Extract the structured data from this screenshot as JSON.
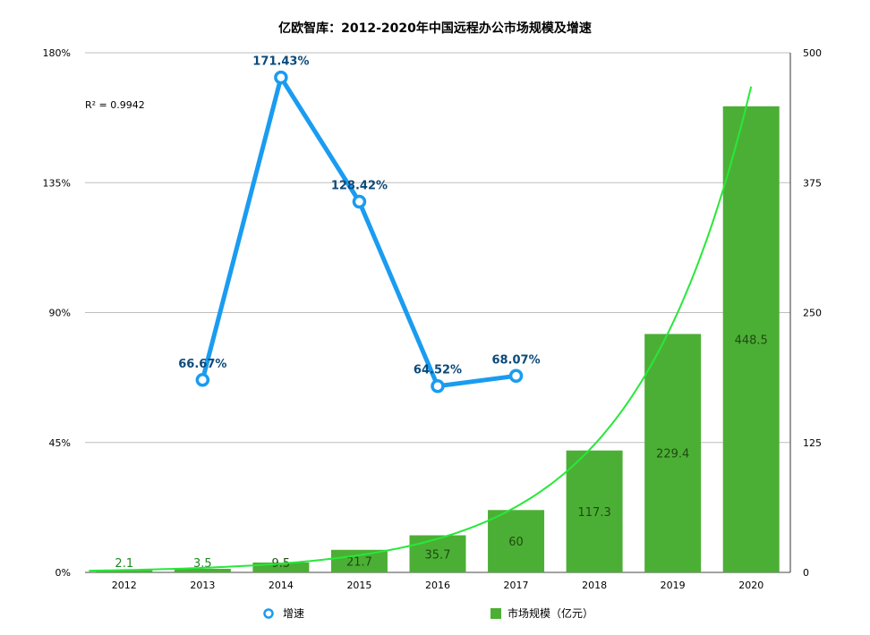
{
  "chart_data": {
    "type": "bar",
    "title": "亿欧智库：2012-2020年中国远程办公市场规模及增速",
    "categories": [
      "2012",
      "2013",
      "2014",
      "2015",
      "2016",
      "2017",
      "2018",
      "2019",
      "2020"
    ],
    "series": [
      {
        "name": "市场规模（亿元）",
        "type": "bar",
        "axis": "right",
        "values": [
          2.1,
          3.5,
          9.5,
          21.7,
          35.7,
          60,
          117.3,
          229.4,
          448.5
        ],
        "labels": [
          "2.1",
          "3.5",
          "9.5",
          "21.7",
          "35.7",
          "60",
          "117.3",
          "229.4",
          "448.5"
        ],
        "color": "#4caf35"
      },
      {
        "name": "增速",
        "type": "line",
        "axis": "left",
        "values": [
          null,
          66.67,
          171.43,
          128.42,
          64.52,
          68.07,
          null,
          null,
          null
        ],
        "labels": [
          "",
          "66.67%",
          "171.43%",
          "128.42%",
          "64.52%",
          "68.07%",
          "",
          "",
          ""
        ],
        "color": "#1a9cf0"
      }
    ],
    "trendline": {
      "of_series": "市场规模（亿元）",
      "kind": "exponential",
      "r_squared_label": "R² = 0.9942",
      "color": "#27e83a"
    },
    "left_axis": {
      "min": 0,
      "max": 180,
      "ticks": [
        "0%",
        "45%",
        "90%",
        "135%",
        "180%"
      ]
    },
    "right_axis": {
      "min": 0,
      "max": 500,
      "ticks": [
        "0",
        "125",
        "250",
        "375",
        "500"
      ]
    },
    "grid": true,
    "legend_position": "bottom"
  }
}
